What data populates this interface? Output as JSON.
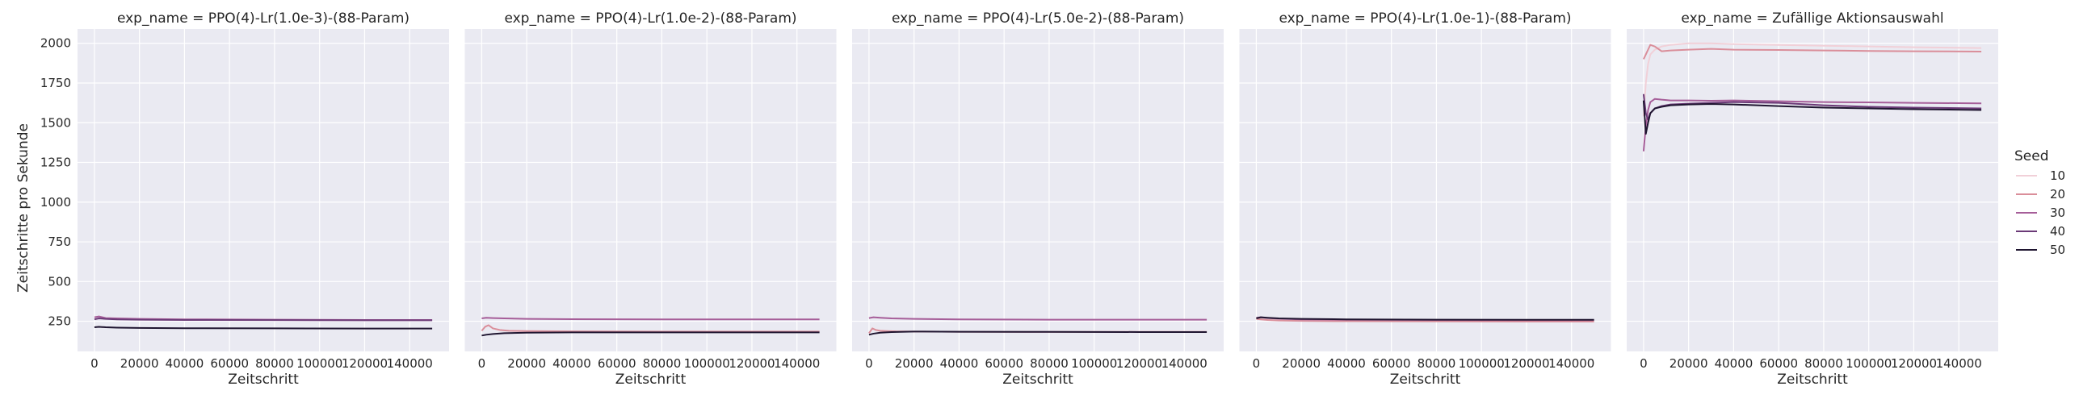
{
  "chart_data": {
    "type": "line",
    "ylabel": "Zeitschritte pro Sekunde",
    "xlabel": "Zeitschritt",
    "xlim": [
      -7500,
      157500
    ],
    "ylim": [
      60,
      2090
    ],
    "x_ticks": [
      0,
      20000,
      40000,
      60000,
      80000,
      100000,
      120000,
      140000
    ],
    "x_tick_labels": [
      "0",
      "20000",
      "40000",
      "60000",
      "80000",
      "100000",
      "120000",
      "140000"
    ],
    "y_ticks": [
      250,
      500,
      750,
      1000,
      1250,
      1500,
      1750,
      2000
    ],
    "y_tick_labels": [
      "250",
      "500",
      "750",
      "1000",
      "1250",
      "1500",
      "1750",
      "2000"
    ],
    "grid": true,
    "legend": {
      "title": "Seed",
      "placement": "right",
      "entries": [
        "10",
        "20",
        "30",
        "40",
        "50"
      ]
    },
    "seed_colors": [
      "#f1d0d8",
      "#da8e9a",
      "#a65e99",
      "#6b3a77",
      "#1f1530"
    ],
    "panels": [
      {
        "title": "exp_name = PPO(4)-Lr(1.0e-3)-(88-Param)",
        "series": [
          {
            "seed": "30",
            "x": [
              0,
              2000,
              5000,
              10000,
              20000,
              40000,
              80000,
              120000,
              150000
            ],
            "y": [
              275,
              280,
              270,
              268,
              265,
              262,
              260,
              258,
              258
            ]
          },
          {
            "seed": "40",
            "x": [
              0,
              2000,
              5000,
              10000,
              20000,
              40000,
              80000,
              120000,
              150000
            ],
            "y": [
              262,
              268,
              265,
              262,
              260,
              258,
              257,
              256,
              256
            ]
          },
          {
            "seed": "50",
            "x": [
              0,
              2000,
              5000,
              10000,
              20000,
              40000,
              80000,
              120000,
              150000
            ],
            "y": [
              212,
              215,
              212,
              210,
              208,
              206,
              205,
              204,
              204
            ]
          }
        ]
      },
      {
        "title": "exp_name = PPO(4)-Lr(1.0e-2)-(88-Param)",
        "series": [
          {
            "seed": "30",
            "x": [
              0,
              2000,
              5000,
              10000,
              20000,
              40000,
              80000,
              120000,
              150000
            ],
            "y": [
              268,
              272,
              270,
              268,
              265,
              263,
              262,
              262,
              262
            ]
          },
          {
            "seed": "20",
            "x": [
              0,
              1500,
              3000,
              5000,
              8000,
              12000,
              20000,
              40000,
              80000,
              150000
            ],
            "y": [
              190,
              215,
              225,
              205,
              195,
              190,
              188,
              186,
              185,
              185
            ]
          },
          {
            "seed": "50",
            "x": [
              0,
              2000,
              5000,
              10000,
              20000,
              40000,
              80000,
              120000,
              150000
            ],
            "y": [
              160,
              165,
              170,
              175,
              178,
              180,
              180,
              180,
              180
            ]
          }
        ]
      },
      {
        "title": "exp_name = PPO(4)-Lr(5.0e-2)-(88-Param)",
        "series": [
          {
            "seed": "30",
            "x": [
              0,
              2000,
              5000,
              10000,
              20000,
              40000,
              80000,
              120000,
              150000
            ],
            "y": [
              270,
              275,
              272,
              268,
              265,
              262,
              260,
              260,
              260
            ]
          },
          {
            "seed": "20",
            "x": [
              0,
              1500,
              3000,
              5000,
              8000,
              12000,
              20000,
              40000,
              80000,
              150000
            ],
            "y": [
              175,
              205,
              195,
              190,
              188,
              186,
              185,
              184,
              183,
              183
            ]
          },
          {
            "seed": "50",
            "x": [
              0,
              2000,
              5000,
              10000,
              20000,
              40000,
              80000,
              120000,
              150000
            ],
            "y": [
              165,
              172,
              178,
              182,
              185,
              184,
              183,
              182,
              182
            ]
          }
        ]
      },
      {
        "title": "exp_name = PPO(4)-Lr(1.0e-1)-(88-Param)",
        "series": [
          {
            "seed": "20",
            "x": [
              0,
              2000,
              5000,
              10000,
              20000,
              40000,
              80000,
              120000,
              150000
            ],
            "y": [
              265,
              262,
              258,
              255,
              252,
              250,
              249,
              248,
              248
            ]
          },
          {
            "seed": "30",
            "x": [
              0,
              2000,
              5000,
              10000,
              20000,
              40000,
              80000,
              120000,
              150000
            ],
            "y": [
              272,
              275,
              270,
              266,
              262,
              260,
              258,
              257,
              257
            ]
          },
          {
            "seed": "50",
            "x": [
              0,
              2000,
              5000,
              10000,
              20000,
              40000,
              80000,
              120000,
              150000
            ],
            "y": [
              268,
              275,
              272,
              268,
              265,
              262,
              260,
              259,
              259
            ]
          }
        ]
      },
      {
        "title": "exp_name = Zufällige Aktionsauswahl",
        "series": [
          {
            "seed": "10",
            "x": [
              0,
              1000,
              2000,
              3000,
              5000,
              8000,
              12000,
              20000,
              30000,
              40000,
              60000,
              80000,
              100000,
              120000,
              150000
            ],
            "y": [
              1540,
              1750,
              1870,
              1930,
              1960,
              1980,
              1990,
              2000,
              2000,
              1995,
              1990,
              1985,
              1980,
              1975,
              1970
            ]
          },
          {
            "seed": "20",
            "x": [
              0,
              1000,
              2000,
              3000,
              5000,
              8000,
              12000,
              20000,
              30000,
              40000,
              60000,
              80000,
              100000,
              120000,
              150000
            ],
            "y": [
              1900,
              1930,
              1960,
              1990,
              1980,
              1950,
              1955,
              1960,
              1965,
              1960,
              1958,
              1955,
              1952,
              1950,
              1948
            ]
          },
          {
            "seed": "30",
            "x": [
              0,
              1000,
              2000,
              3000,
              5000,
              8000,
              12000,
              20000,
              30000,
              40000,
              60000,
              80000,
              100000,
              120000,
              150000
            ],
            "y": [
              1320,
              1480,
              1580,
              1630,
              1650,
              1645,
              1640,
              1640,
              1638,
              1640,
              1635,
              1630,
              1628,
              1625,
              1622
            ]
          },
          {
            "seed": "40",
            "x": [
              0,
              1000,
              2000,
              3000,
              5000,
              8000,
              12000,
              20000,
              30000,
              40000,
              60000,
              80000,
              100000,
              120000,
              150000
            ],
            "y": [
              1680,
              1560,
              1520,
              1560,
              1590,
              1605,
              1615,
              1620,
              1625,
              1630,
              1625,
              1610,
              1600,
              1595,
              1590
            ]
          },
          {
            "seed": "50",
            "x": [
              0,
              1000,
              2000,
              3000,
              5000,
              8000,
              12000,
              20000,
              30000,
              40000,
              60000,
              80000,
              100000,
              120000,
              150000
            ],
            "y": [
              1640,
              1430,
              1500,
              1560,
              1590,
              1600,
              1610,
              1615,
              1618,
              1615,
              1605,
              1595,
              1590,
              1585,
              1580
            ]
          }
        ]
      }
    ]
  }
}
